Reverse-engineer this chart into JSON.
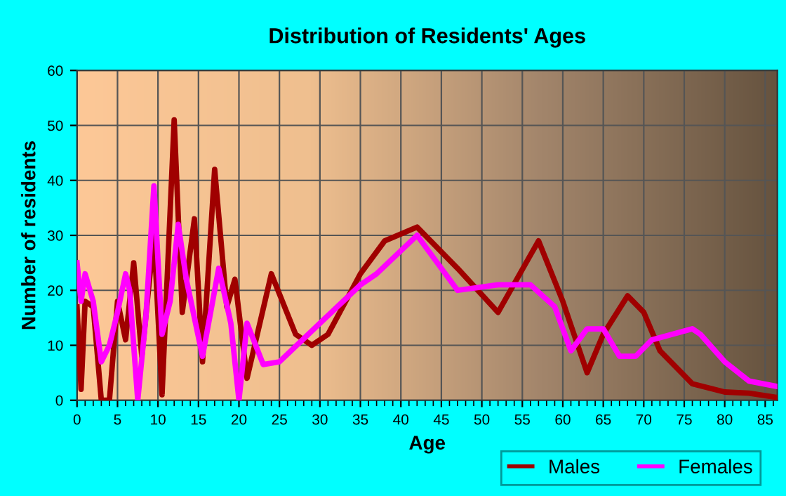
{
  "chart_data": {
    "type": "line",
    "title": "Distribution of Residents' Ages",
    "xlabel": "Age",
    "ylabel": "Number of residents",
    "xlim": [
      0,
      86.5
    ],
    "xticks": [
      0,
      5,
      10,
      15,
      20,
      25,
      30,
      35,
      40,
      45,
      50,
      55,
      60,
      65,
      70,
      75,
      80,
      85
    ],
    "ylim": [
      0,
      60
    ],
    "yticks": [
      0,
      10,
      20,
      30,
      40,
      50,
      60
    ],
    "grid": true,
    "legend": "bottom right",
    "marker": "none",
    "line_style": "solid",
    "series": [
      {
        "name": "Males",
        "color": "#a00000",
        "x": [
          0,
          0.5,
          1,
          2,
          3,
          4,
          5,
          6,
          7,
          8,
          9.5,
          10.5,
          12,
          13,
          14.5,
          15.5,
          17,
          18.5,
          19.5,
          21,
          24,
          27,
          29,
          31,
          35,
          38,
          42,
          47,
          52,
          57,
          60,
          63,
          65,
          68,
          70,
          72,
          76,
          80,
          83,
          86.5
        ],
        "values": [
          17,
          2,
          18,
          17,
          0,
          0,
          18,
          11,
          25,
          8,
          30,
          1,
          51,
          16,
          33,
          7,
          42,
          17,
          22,
          4,
          23,
          12,
          10,
          12,
          23,
          29,
          31.5,
          24,
          16,
          29,
          18,
          5,
          12,
          19,
          16,
          9,
          3,
          1.5,
          1.3,
          0.5
        ]
      },
      {
        "name": "Females",
        "color": "#ff00ff",
        "x": [
          0,
          0.5,
          1,
          2,
          3,
          4,
          5,
          6,
          6.5,
          7.5,
          8.5,
          9.5,
          10.5,
          11.5,
          12.5,
          13.5,
          15.5,
          17.5,
          19,
          20,
          21,
          23,
          25,
          30,
          35,
          37,
          42,
          47,
          52,
          56,
          59,
          61,
          63,
          65,
          67,
          69,
          71,
          76,
          77,
          80,
          83,
          86.5
        ],
        "values": [
          25,
          18,
          23,
          18,
          7,
          10,
          16,
          23,
          20,
          0,
          15,
          39,
          12,
          18,
          32,
          22,
          8,
          24,
          14,
          0,
          14,
          6.5,
          7,
          14,
          21,
          23,
          30,
          20,
          21,
          21,
          17,
          9,
          13,
          13,
          8,
          8,
          11,
          13,
          12,
          7,
          3.5,
          2.5
        ]
      }
    ]
  }
}
